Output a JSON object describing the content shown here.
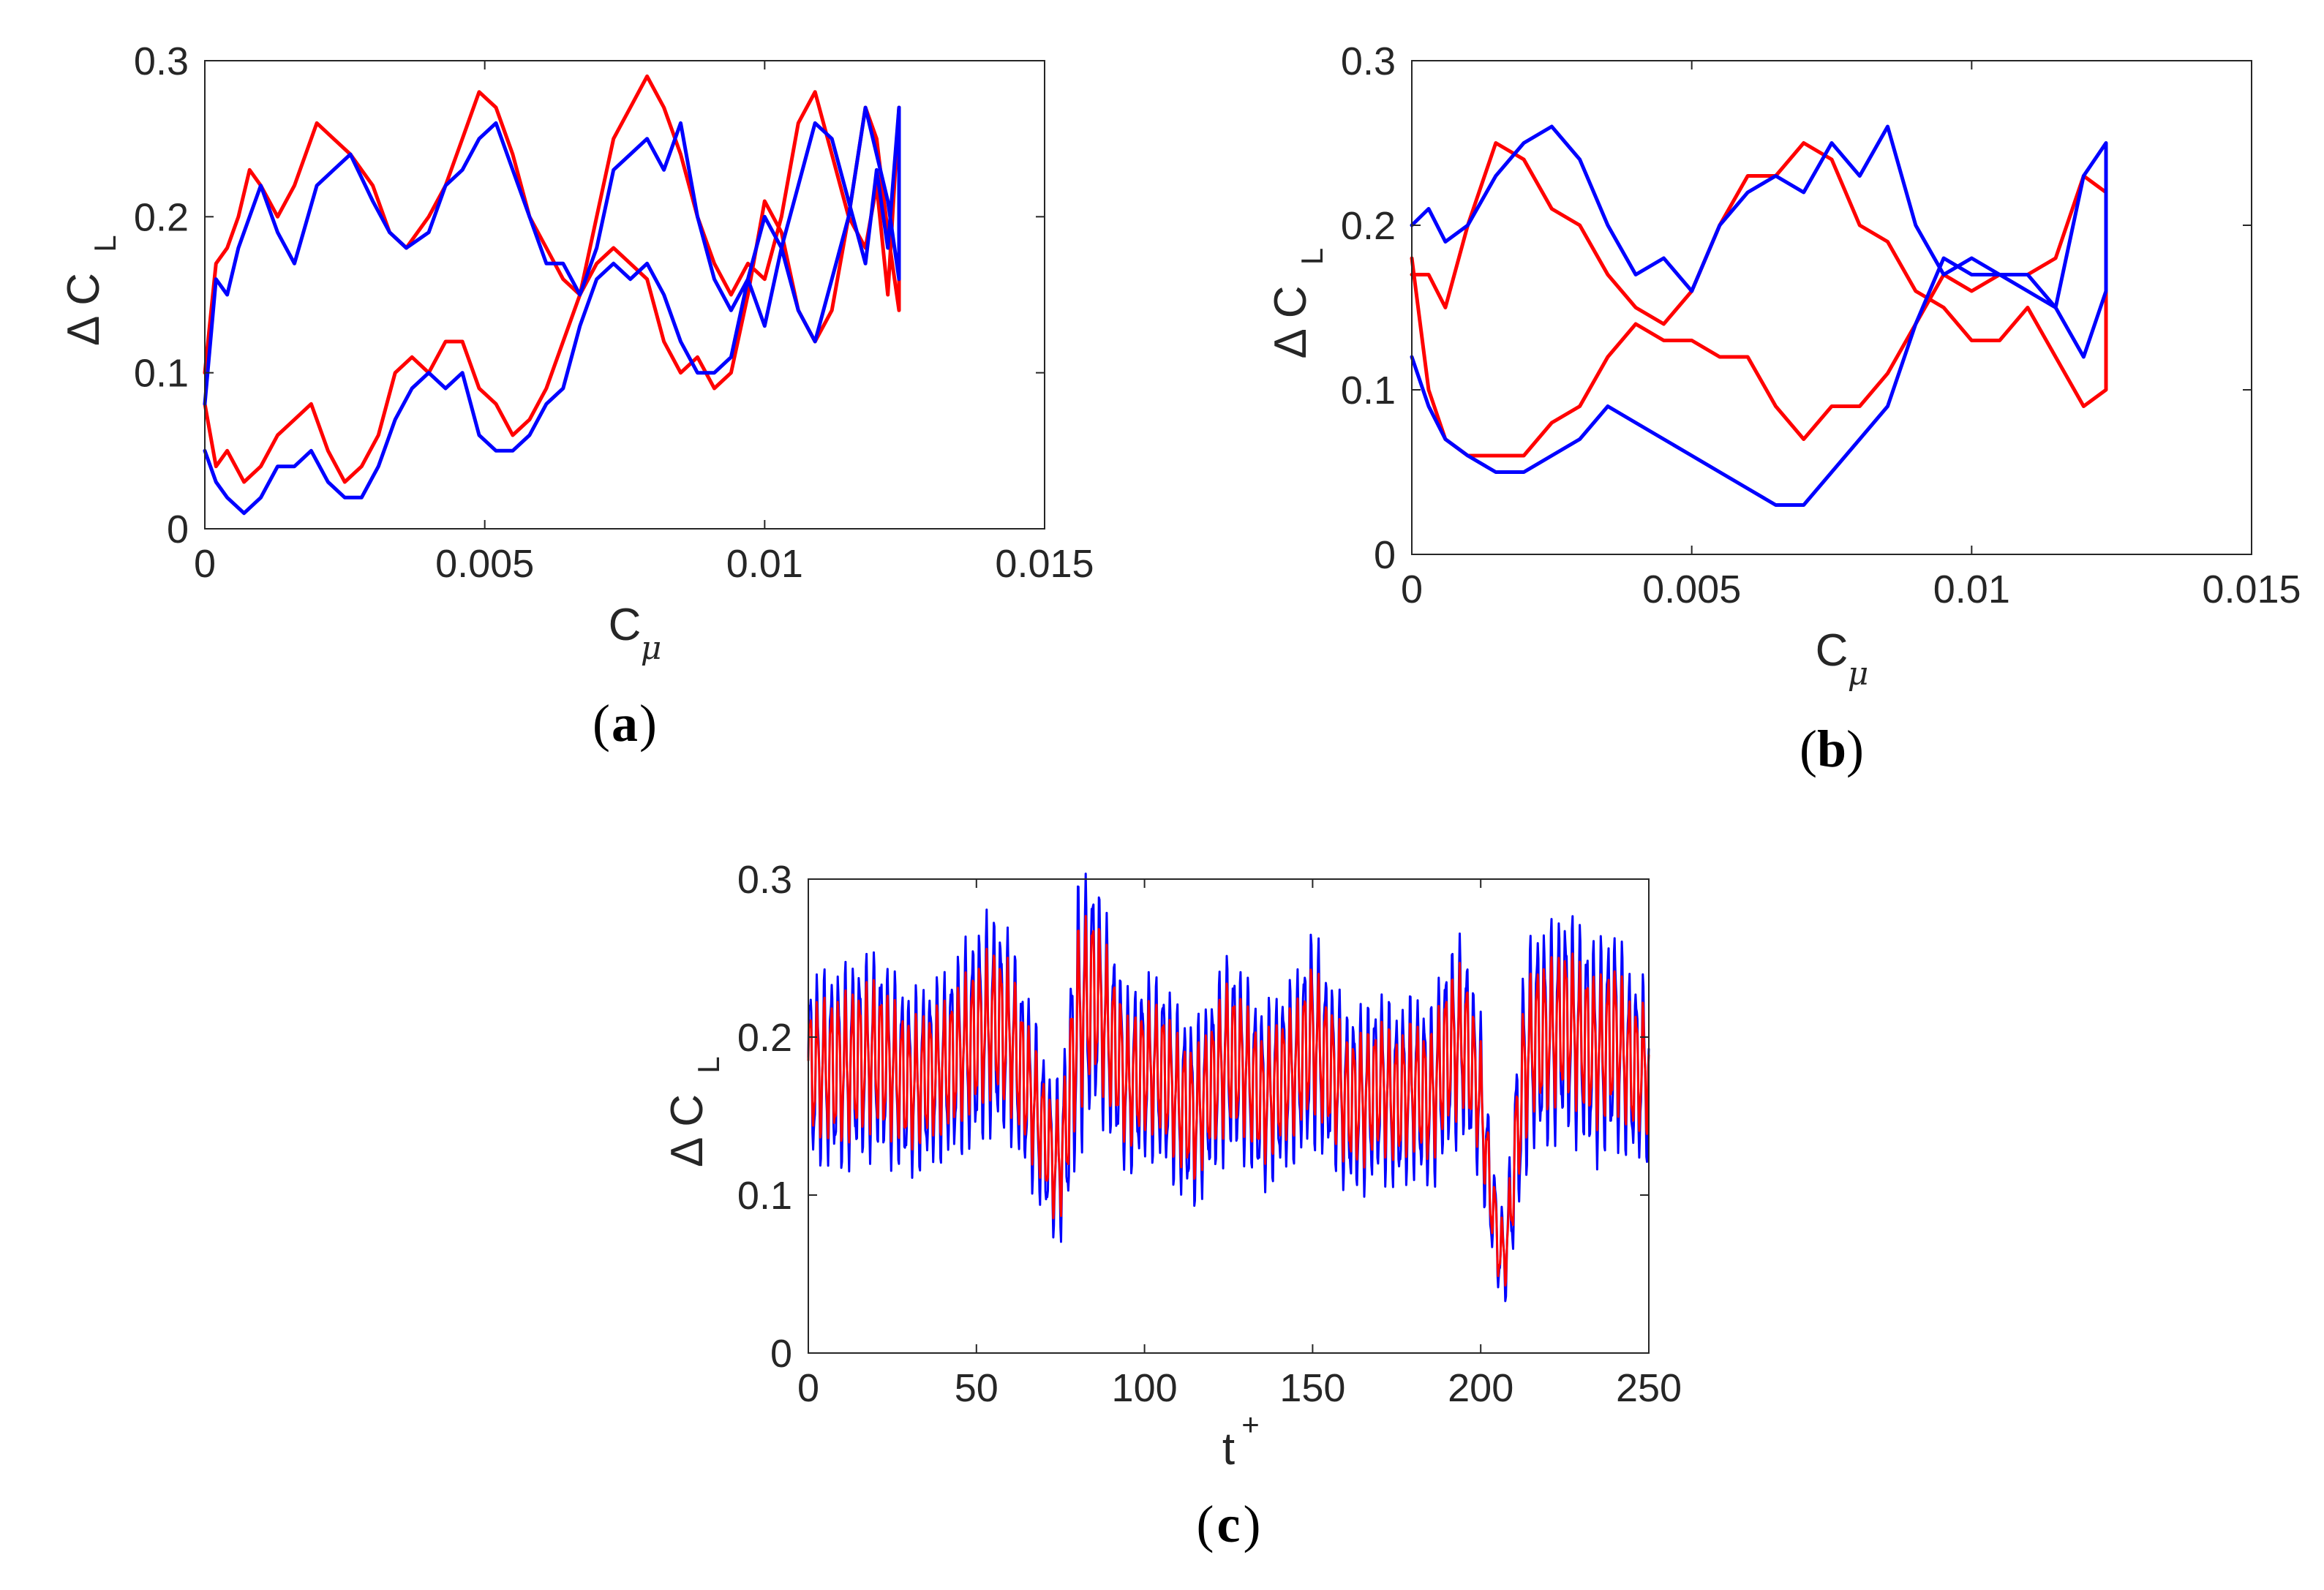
{
  "colors": {
    "series_red": "#ff0000",
    "series_blue": "#0000ff",
    "axis": "#262626"
  },
  "chart_data": [
    {
      "panel_label": "a",
      "type": "line",
      "xlabel": "C",
      "xlabel_sub": "μ",
      "ylabel": "Δ C",
      "ylabel_sub": "L",
      "xlim": [
        0,
        0.015
      ],
      "ylim": [
        0,
        0.3
      ],
      "xticks": [
        0,
        0.005,
        0.01,
        0.015
      ],
      "xtick_labels": [
        "0",
        "0.005",
        "0.01",
        "0.015"
      ],
      "yticks": [
        0,
        0.1,
        0.2,
        0.3
      ],
      "ytick_labels": [
        "0",
        "0.1",
        "0.2",
        "0.3"
      ],
      "series": [
        {
          "name": "red",
          "color": "#ff0000",
          "x": [
            0,
            0.0002,
            0.0004,
            0.0006,
            0.0008,
            0.001,
            0.0013,
            0.0016,
            0.002,
            0.0023,
            0.0026,
            0.003,
            0.0033,
            0.0036,
            0.004,
            0.0043,
            0.0046,
            0.0049,
            0.0052,
            0.0055,
            0.0058,
            0.0061,
            0.0064,
            0.0067,
            0.007,
            0.0073,
            0.0076,
            0.0079,
            0.0082,
            0.0085,
            0.0088,
            0.0091,
            0.0094,
            0.0097,
            0.01,
            0.0103,
            0.0106,
            0.0109,
            0.0112,
            0.0115,
            0.0118,
            0.012,
            0.0122,
            0.0124,
            0.0124,
            0.0122,
            0.012,
            0.0118,
            0.0115,
            0.0112,
            0.0109,
            0.0106,
            0.0103,
            0.01,
            0.0097,
            0.0094,
            0.0091,
            0.0088,
            0.0085,
            0.0082,
            0.0079,
            0.0076,
            0.0073,
            0.007,
            0.0067,
            0.0064,
            0.0061,
            0.0058,
            0.0055,
            0.0052,
            0.0049,
            0.0046,
            0.0043,
            0.004,
            0.0037,
            0.0034,
            0.0031,
            0.0028,
            0.0025,
            0.0022,
            0.0019,
            0.0016,
            0.0013,
            0.001,
            0.0007,
            0.0004,
            0.0002,
            0
          ],
          "y": [
            0.1,
            0.17,
            0.18,
            0.2,
            0.23,
            0.22,
            0.2,
            0.22,
            0.26,
            0.25,
            0.24,
            0.22,
            0.19,
            0.18,
            0.2,
            0.22,
            0.25,
            0.28,
            0.27,
            0.24,
            0.2,
            0.18,
            0.16,
            0.15,
            0.2,
            0.25,
            0.27,
            0.29,
            0.27,
            0.24,
            0.2,
            0.17,
            0.15,
            0.17,
            0.16,
            0.2,
            0.26,
            0.28,
            0.24,
            0.2,
            0.18,
            0.22,
            0.15,
            0.27,
            0.14,
            0.19,
            0.25,
            0.27,
            0.2,
            0.14,
            0.12,
            0.14,
            0.19,
            0.21,
            0.15,
            0.1,
            0.09,
            0.11,
            0.1,
            0.12,
            0.16,
            0.17,
            0.18,
            0.17,
            0.15,
            0.12,
            0.09,
            0.07,
            0.06,
            0.08,
            0.09,
            0.12,
            0.12,
            0.1,
            0.11,
            0.1,
            0.06,
            0.04,
            0.03,
            0.05,
            0.08,
            0.07,
            0.06,
            0.04,
            0.03,
            0.05,
            0.04,
            0.08
          ]
        },
        {
          "name": "blue",
          "color": "#0000ff",
          "x": [
            0,
            0.0002,
            0.0004,
            0.0006,
            0.0008,
            0.001,
            0.0013,
            0.0016,
            0.002,
            0.0023,
            0.0026,
            0.003,
            0.0033,
            0.0036,
            0.004,
            0.0043,
            0.0046,
            0.0049,
            0.0052,
            0.0055,
            0.0058,
            0.0061,
            0.0064,
            0.0067,
            0.007,
            0.0073,
            0.0076,
            0.0079,
            0.0082,
            0.0085,
            0.0088,
            0.0091,
            0.0094,
            0.0097,
            0.01,
            0.0103,
            0.0106,
            0.0109,
            0.0112,
            0.0115,
            0.0118,
            0.012,
            0.0122,
            0.0124,
            0.0124,
            0.0122,
            0.012,
            0.0118,
            0.0115,
            0.0112,
            0.0109,
            0.0106,
            0.0103,
            0.01,
            0.0097,
            0.0094,
            0.0091,
            0.0088,
            0.0085,
            0.0082,
            0.0079,
            0.0076,
            0.0073,
            0.007,
            0.0067,
            0.0064,
            0.0061,
            0.0058,
            0.0055,
            0.0052,
            0.0049,
            0.0046,
            0.0043,
            0.004,
            0.0037,
            0.0034,
            0.0031,
            0.0028,
            0.0025,
            0.0022,
            0.0019,
            0.0016,
            0.0013,
            0.001,
            0.0007,
            0.0004,
            0.0002,
            0
          ],
          "y": [
            0.08,
            0.16,
            0.15,
            0.18,
            0.2,
            0.22,
            0.19,
            0.17,
            0.22,
            0.23,
            0.24,
            0.21,
            0.19,
            0.18,
            0.19,
            0.22,
            0.23,
            0.25,
            0.26,
            0.23,
            0.2,
            0.17,
            0.17,
            0.15,
            0.18,
            0.23,
            0.24,
            0.25,
            0.23,
            0.26,
            0.2,
            0.16,
            0.14,
            0.16,
            0.13,
            0.18,
            0.22,
            0.26,
            0.25,
            0.21,
            0.17,
            0.23,
            0.18,
            0.27,
            0.16,
            0.21,
            0.24,
            0.27,
            0.2,
            0.16,
            0.12,
            0.14,
            0.18,
            0.2,
            0.16,
            0.11,
            0.1,
            0.1,
            0.12,
            0.15,
            0.17,
            0.16,
            0.17,
            0.16,
            0.13,
            0.09,
            0.08,
            0.06,
            0.05,
            0.05,
            0.06,
            0.1,
            0.09,
            0.1,
            0.09,
            0.07,
            0.04,
            0.02,
            0.02,
            0.03,
            0.05,
            0.04,
            0.04,
            0.02,
            0.01,
            0.02,
            0.03,
            0.05
          ]
        }
      ]
    },
    {
      "panel_label": "b",
      "type": "line",
      "xlabel": "C",
      "xlabel_sub": "μ",
      "ylabel": "Δ C",
      "ylabel_sub": "L",
      "xlim": [
        0,
        0.015
      ],
      "ylim": [
        0,
        0.3
      ],
      "xticks": [
        0,
        0.005,
        0.01,
        0.015
      ],
      "xtick_labels": [
        "0",
        "0.005",
        "0.01",
        "0.015"
      ],
      "yticks": [
        0,
        0.1,
        0.2,
        0.3
      ],
      "ytick_labels": [
        "0",
        "0.1",
        "0.2",
        "0.3"
      ],
      "series": [
        {
          "name": "red",
          "color": "#ff0000",
          "x": [
            0,
            0.0003,
            0.0006,
            0.001,
            0.0015,
            0.002,
            0.0025,
            0.003,
            0.0035,
            0.004,
            0.0045,
            0.005,
            0.0055,
            0.006,
            0.0065,
            0.007,
            0.0075,
            0.008,
            0.0085,
            0.009,
            0.0095,
            0.01,
            0.0105,
            0.011,
            0.0115,
            0.012,
            0.0124,
            0.0124,
            0.012,
            0.0115,
            0.011,
            0.0105,
            0.01,
            0.0095,
            0.009,
            0.0085,
            0.008,
            0.0075,
            0.007,
            0.0065,
            0.006,
            0.0055,
            0.005,
            0.0045,
            0.004,
            0.0035,
            0.003,
            0.0025,
            0.002,
            0.0015,
            0.001,
            0.0006,
            0.0003,
            0
          ],
          "y": [
            0.17,
            0.17,
            0.15,
            0.2,
            0.25,
            0.24,
            0.21,
            0.2,
            0.17,
            0.15,
            0.14,
            0.16,
            0.2,
            0.23,
            0.23,
            0.25,
            0.24,
            0.2,
            0.19,
            0.16,
            0.15,
            0.13,
            0.13,
            0.15,
            0.12,
            0.09,
            0.1,
            0.22,
            0.23,
            0.18,
            0.17,
            0.17,
            0.16,
            0.17,
            0.14,
            0.11,
            0.09,
            0.09,
            0.07,
            0.09,
            0.12,
            0.12,
            0.13,
            0.13,
            0.14,
            0.12,
            0.09,
            0.08,
            0.06,
            0.06,
            0.06,
            0.07,
            0.1,
            0.18
          ]
        },
        {
          "name": "blue",
          "color": "#0000ff",
          "x": [
            0,
            0.0003,
            0.0006,
            0.001,
            0.0015,
            0.002,
            0.0025,
            0.003,
            0.0035,
            0.004,
            0.0045,
            0.005,
            0.0055,
            0.006,
            0.0065,
            0.007,
            0.0075,
            0.008,
            0.0085,
            0.009,
            0.0095,
            0.01,
            0.0105,
            0.011,
            0.0115,
            0.012,
            0.0124,
            0.0124,
            0.012,
            0.0115,
            0.011,
            0.0105,
            0.01,
            0.0095,
            0.009,
            0.0085,
            0.008,
            0.0075,
            0.007,
            0.0065,
            0.006,
            0.0055,
            0.005,
            0.0045,
            0.004,
            0.0035,
            0.003,
            0.0025,
            0.002,
            0.0015,
            0.001,
            0.0006,
            0.0003,
            0
          ],
          "y": [
            0.2,
            0.21,
            0.19,
            0.2,
            0.23,
            0.25,
            0.26,
            0.24,
            0.2,
            0.17,
            0.18,
            0.16,
            0.2,
            0.22,
            0.23,
            0.22,
            0.25,
            0.23,
            0.26,
            0.2,
            0.17,
            0.18,
            0.17,
            0.16,
            0.15,
            0.12,
            0.16,
            0.25,
            0.23,
            0.15,
            0.17,
            0.17,
            0.17,
            0.18,
            0.14,
            0.09,
            0.07,
            0.05,
            0.03,
            0.03,
            0.04,
            0.05,
            0.06,
            0.07,
            0.08,
            0.09,
            0.07,
            0.06,
            0.05,
            0.05,
            0.06,
            0.07,
            0.09,
            0.12
          ]
        }
      ]
    },
    {
      "panel_label": "c",
      "type": "line",
      "xlabel": "t",
      "xlabel_sup": "+",
      "ylabel": "Δ C",
      "ylabel_sub": "L",
      "xlim": [
        0,
        250
      ],
      "ylim": [
        0,
        0.3
      ],
      "xticks": [
        0,
        50,
        100,
        150,
        200,
        250
      ],
      "xtick_labels": [
        "0",
        "50",
        "100",
        "150",
        "200",
        "250"
      ],
      "yticks": [
        0,
        0.1,
        0.2,
        0.3
      ],
      "ytick_labels": [
        "0",
        "0.1",
        "0.2",
        "0.3"
      ],
      "oscillation_period": 2.1,
      "envelope": {
        "t": [
          0,
          10,
          20,
          30,
          40,
          50,
          55,
          60,
          65,
          70,
          73,
          76,
          80,
          85,
          90,
          95,
          100,
          105,
          110,
          115,
          120,
          125,
          130,
          135,
          140,
          145,
          150,
          155,
          160,
          165,
          170,
          175,
          180,
          185,
          190,
          195,
          200,
          203,
          206,
          208,
          210,
          213,
          216,
          220,
          225,
          230,
          235,
          240,
          245,
          250
        ],
        "center": [
          0.18,
          0.18,
          0.19,
          0.17,
          0.18,
          0.2,
          0.21,
          0.2,
          0.17,
          0.14,
          0.12,
          0.13,
          0.21,
          0.23,
          0.2,
          0.17,
          0.18,
          0.18,
          0.16,
          0.15,
          0.17,
          0.19,
          0.18,
          0.16,
          0.17,
          0.18,
          0.2,
          0.18,
          0.16,
          0.16,
          0.17,
          0.16,
          0.17,
          0.16,
          0.19,
          0.2,
          0.16,
          0.1,
          0.06,
          0.07,
          0.12,
          0.18,
          0.2,
          0.2,
          0.21,
          0.2,
          0.19,
          0.2,
          0.18,
          0.18
        ],
        "amp_red": [
          0.035,
          0.04,
          0.04,
          0.035,
          0.035,
          0.04,
          0.04,
          0.04,
          0.035,
          0.03,
          0.03,
          0.035,
          0.05,
          0.045,
          0.04,
          0.035,
          0.035,
          0.035,
          0.035,
          0.035,
          0.035,
          0.04,
          0.035,
          0.035,
          0.035,
          0.035,
          0.04,
          0.035,
          0.035,
          0.035,
          0.035,
          0.035,
          0.035,
          0.035,
          0.04,
          0.04,
          0.03,
          0.02,
          0.02,
          0.02,
          0.03,
          0.04,
          0.04,
          0.04,
          0.04,
          0.04,
          0.04,
          0.04,
          0.035,
          0.035
        ],
        "amp_blue": [
          0.05,
          0.055,
          0.055,
          0.05,
          0.05,
          0.06,
          0.06,
          0.055,
          0.05,
          0.045,
          0.04,
          0.05,
          0.075,
          0.065,
          0.055,
          0.05,
          0.05,
          0.05,
          0.05,
          0.05,
          0.05,
          0.055,
          0.05,
          0.05,
          0.05,
          0.05,
          0.06,
          0.05,
          0.05,
          0.05,
          0.05,
          0.05,
          0.05,
          0.05,
          0.055,
          0.055,
          0.045,
          0.03,
          0.025,
          0.03,
          0.045,
          0.06,
          0.06,
          0.06,
          0.06,
          0.06,
          0.06,
          0.06,
          0.05,
          0.05
        ]
      },
      "series": [
        {
          "name": "blue",
          "color": "#0000ff"
        },
        {
          "name": "red",
          "color": "#ff0000"
        }
      ]
    }
  ]
}
